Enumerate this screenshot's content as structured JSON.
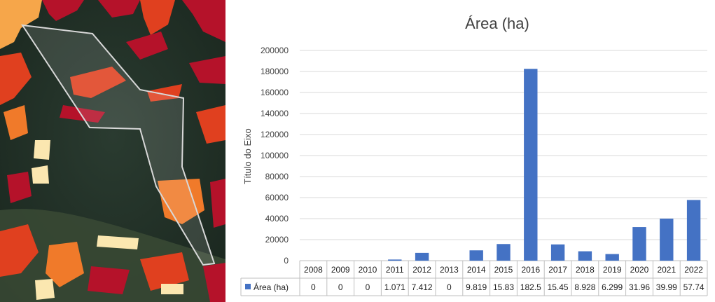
{
  "chart_data": {
    "type": "bar",
    "title": "Área (ha)",
    "ylabel": "Título do Eixo",
    "xlabel": "",
    "ylim": [
      0,
      200000
    ],
    "yticks": [
      "0",
      "20000",
      "40000",
      "60000",
      "80000",
      "100000",
      "120000",
      "140000",
      "160000",
      "180000",
      "200000"
    ],
    "grid": true,
    "legend_position": "bottom-left (data table)",
    "categories": [
      "2008",
      "2009",
      "2010",
      "2011",
      "2012",
      "2013",
      "2014",
      "2015",
      "2016",
      "2017",
      "2018",
      "2019",
      "2020",
      "2021",
      "2022"
    ],
    "series": [
      {
        "name": "Área (ha)",
        "color": "#4472C4",
        "values": [
          0,
          0,
          0,
          1071,
          7412,
          0,
          9819,
          15830,
          182500,
          15450,
          8928,
          6299,
          31960,
          39990,
          57740
        ],
        "table_labels": [
          "0",
          "0",
          "0",
          "1.071",
          "7.412",
          "0",
          "9.819",
          "15.83",
          "182.5",
          "15.45",
          "8.928",
          "6.299",
          "31.96",
          "39.99",
          "57.74"
        ]
      }
    ]
  },
  "map_image": {
    "background_color": "#1f2e25",
    "outline_color": "#d8d8d8",
    "patch_colors": [
      "#b5122a",
      "#e0401f",
      "#f07a2a",
      "#f6a64a",
      "#fbe7b0"
    ]
  }
}
